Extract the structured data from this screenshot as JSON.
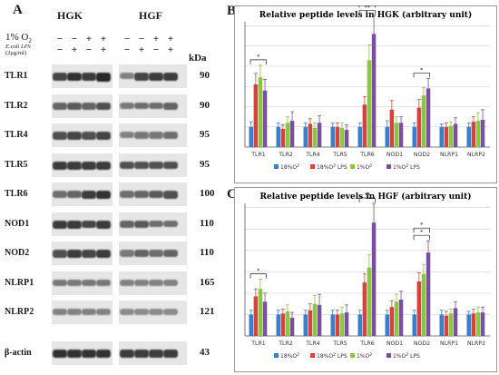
{
  "panels": {
    "a": "A",
    "b": "B",
    "c": "C"
  },
  "blot": {
    "group_left": "HGK",
    "group_right": "HGF",
    "o2_label": "1% O",
    "o2_sub": "2",
    "lps_label_1": "E.coli LPS",
    "lps_label_2": "(2μg/ml)",
    "o2_signs": [
      "−",
      "−",
      "+",
      "+",
      "−",
      "−",
      "+",
      "+"
    ],
    "lps_signs": [
      "−",
      "+",
      "−",
      "+",
      "−",
      "+",
      "−",
      "+"
    ],
    "kda_header": "kDa",
    "rows": [
      {
        "name": "TLR1",
        "kda": "90"
      },
      {
        "name": "TLR2",
        "kda": "90"
      },
      {
        "name": "TLR4",
        "kda": "95"
      },
      {
        "name": "TLR5",
        "kda": "95"
      },
      {
        "name": "TLR6",
        "kda": "100"
      },
      {
        "name": "NOD1",
        "kda": "110"
      },
      {
        "name": "NOD2",
        "kda": "110"
      },
      {
        "name": "NLRP1",
        "kda": "165"
      },
      {
        "name": "NLRP2",
        "kda": "121"
      },
      {
        "name": "β-actin",
        "kda": "43"
      }
    ],
    "band_intensity": [
      [
        0.75,
        0.85,
        0.8,
        0.9,
        0.45,
        0.75,
        0.8,
        0.8
      ],
      [
        0.6,
        0.65,
        0.6,
        0.7,
        0.5,
        0.55,
        0.55,
        0.6
      ],
      [
        0.7,
        0.75,
        0.7,
        0.75,
        0.45,
        0.5,
        0.5,
        0.55
      ],
      [
        0.8,
        0.8,
        0.8,
        0.8,
        0.7,
        0.7,
        0.7,
        0.7
      ],
      [
        0.55,
        0.6,
        0.8,
        0.85,
        0.55,
        0.6,
        0.65,
        0.7
      ],
      [
        0.8,
        0.8,
        0.75,
        0.8,
        0.6,
        0.65,
        0.55,
        0.55
      ],
      [
        0.7,
        0.8,
        0.75,
        0.8,
        0.5,
        0.6,
        0.55,
        0.6
      ],
      [
        0.5,
        0.5,
        0.5,
        0.5,
        0.45,
        0.45,
        0.45,
        0.45
      ],
      [
        0.45,
        0.45,
        0.45,
        0.45,
        0.4,
        0.4,
        0.4,
        0.4
      ],
      [
        0.85,
        0.85,
        0.85,
        0.85,
        0.8,
        0.8,
        0.8,
        0.8
      ]
    ]
  },
  "chart_data": [
    {
      "type": "bar",
      "title": "Relative peptide levels in HGK (arbitrary unit)",
      "categories": [
        "TLR1",
        "TLR2",
        "TLR4",
        "TLR5",
        "TLR6",
        "NOD1",
        "NOD2",
        "NLRP1",
        "NLRP2"
      ],
      "ylim": [
        0,
        6.2
      ],
      "series": [
        {
          "name": "18%O2",
          "values": [
            1.0,
            1.0,
            1.0,
            1.0,
            1.0,
            1.0,
            1.0,
            1.0,
            1.0
          ],
          "errors": [
            0.25,
            0.2,
            0.2,
            0.2,
            0.2,
            0.3,
            0.2,
            0.15,
            0.2
          ]
        },
        {
          "name": "18%O2 LPS",
          "values": [
            3.1,
            0.9,
            1.15,
            1.0,
            2.1,
            1.85,
            1.95,
            1.0,
            1.25
          ],
          "errors": [
            0.55,
            0.2,
            0.25,
            0.2,
            0.4,
            0.45,
            0.4,
            0.2,
            0.25
          ]
        },
        {
          "name": "1%O2",
          "values": [
            3.45,
            1.2,
            0.95,
            0.95,
            4.3,
            1.2,
            2.55,
            1.05,
            1.3
          ],
          "errors": [
            0.6,
            0.3,
            0.25,
            0.25,
            0.75,
            0.3,
            0.4,
            0.2,
            0.4
          ]
        },
        {
          "name": "1%O2 LPS",
          "values": [
            2.8,
            1.3,
            1.2,
            0.85,
            5.6,
            1.2,
            2.9,
            1.15,
            1.35
          ],
          "errors": [
            0.55,
            0.45,
            0.35,
            0.25,
            0.9,
            0.3,
            0.5,
            0.3,
            0.5
          ]
        }
      ],
      "legend": [
        "18%O",
        "18%O",
        "LPS",
        "1%O",
        "1%O",
        "LPS"
      ],
      "annotations": [
        {
          "category": "TLR1",
          "text": "*"
        },
        {
          "category": "TLR6",
          "text": "**"
        },
        {
          "category": "TLR6",
          "text": "**"
        },
        {
          "category": "NOD2",
          "text": "*"
        }
      ]
    },
    {
      "type": "bar",
      "title": "Relative peptide levels in HGF (arbitrary unit)",
      "categories": [
        "TLR1",
        "TLR2",
        "TLR4",
        "TLR5",
        "TLR6",
        "NOD1",
        "NOD2",
        "NLRP1",
        "NLRP2"
      ],
      "ylim": [
        0,
        6.2
      ],
      "series": [
        {
          "name": "18%O2",
          "values": [
            1.0,
            1.0,
            1.0,
            1.0,
            1.0,
            1.0,
            1.0,
            1.0,
            1.0
          ],
          "errors": [
            0.2,
            0.2,
            0.2,
            0.2,
            0.2,
            0.2,
            0.2,
            0.2,
            0.15
          ]
        },
        {
          "name": "18%O2 LPS",
          "values": [
            1.85,
            1.05,
            1.2,
            1.0,
            2.5,
            1.35,
            2.55,
            0.95,
            1.05
          ],
          "errors": [
            0.35,
            0.2,
            0.3,
            0.2,
            0.4,
            0.3,
            0.4,
            0.2,
            0.2
          ]
        },
        {
          "name": "1%O2",
          "values": [
            2.2,
            1.15,
            1.5,
            1.05,
            3.2,
            1.6,
            2.9,
            1.05,
            1.1
          ],
          "errors": [
            0.45,
            0.3,
            0.4,
            0.3,
            0.6,
            0.35,
            0.45,
            0.2,
            0.25
          ]
        },
        {
          "name": "1%O2 LPS",
          "values": [
            1.6,
            0.85,
            1.45,
            1.1,
            5.3,
            1.7,
            3.9,
            1.3,
            1.1
          ],
          "errors": [
            0.4,
            0.25,
            0.5,
            0.35,
            0.9,
            0.4,
            0.55,
            0.3,
            0.25
          ]
        }
      ],
      "legend": [
        "18%O",
        "18%O",
        "LPS",
        "1%O",
        "1%O",
        "LPS"
      ],
      "annotations": [
        {
          "category": "TLR1",
          "text": "*"
        },
        {
          "category": "TLR6",
          "text": "**"
        },
        {
          "category": "NOD2",
          "text": "*"
        },
        {
          "category": "NOD2",
          "text": "*"
        }
      ]
    }
  ],
  "colors": {
    "s0": "#3a7fc9",
    "s1": "#d8423b",
    "s2": "#8cc63f",
    "s3": "#7b4ea3",
    "axis": "#555555",
    "grid": "#c8c8c8"
  }
}
